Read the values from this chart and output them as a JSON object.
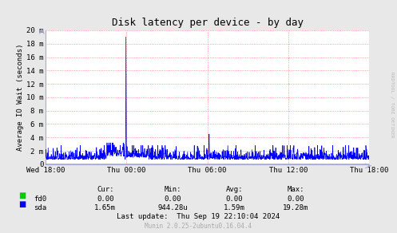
{
  "title": "Disk latency per device - by day",
  "ylabel": "Average IO Wait (seconds)",
  "bg_color": "#e8e8e8",
  "plot_bg_color": "#ffffff",
  "grid_color": "#ff8080",
  "x_labels": [
    "Wed 18:00",
    "Thu 00:00",
    "Thu 06:00",
    "Thu 12:00",
    "Thu 18:00"
  ],
  "y_ticks": [
    0,
    2,
    4,
    6,
    8,
    10,
    12,
    14,
    16,
    18,
    20
  ],
  "y_tick_labels": [
    "0",
    "2 m",
    "4 m",
    "6 m",
    "8 m",
    "10 m",
    "12 m",
    "14 m",
    "16 m",
    "18 m",
    "20 m"
  ],
  "ylim": [
    0,
    20
  ],
  "legend_items": [
    {
      "label": "fd0",
      "color": "#00cc00"
    },
    {
      "label": "sda",
      "color": "#0000ff"
    }
  ],
  "table_headers": [
    "Cur:",
    "Min:",
    "Avg:",
    "Max:"
  ],
  "table_rows": [
    [
      "fd0",
      "#00cc00",
      "0.00",
      "0.00",
      "0.00",
      "0.00"
    ],
    [
      "sda",
      "#0000ff",
      "1.65m",
      "944.28u",
      "1.59m",
      "19.28m"
    ]
  ],
  "last_update": "Last update:  Thu Sep 19 22:10:04 2024",
  "munin_version": "Munin 2.0.25-2ubuntu0.16.04.4",
  "side_label": "RRDTOOL / TOBI OETIKER",
  "title_fontsize": 9,
  "axis_fontsize": 6.5,
  "table_fontsize": 6.5
}
